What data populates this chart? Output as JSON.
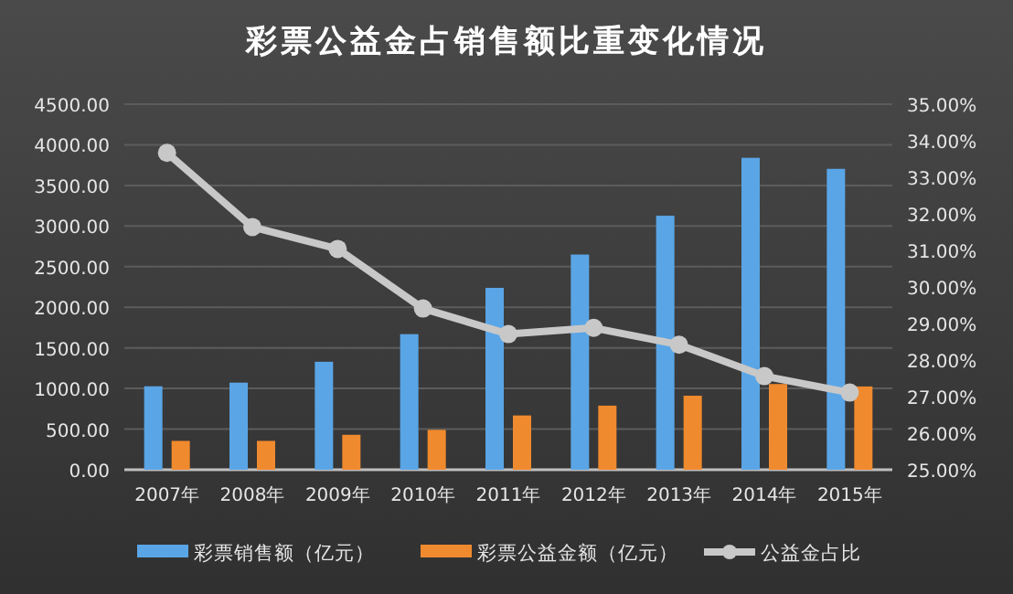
{
  "chart_data": {
    "type": "bar",
    "title": "彩票公益金占销售额比重变化情况",
    "categories": [
      "2007年",
      "2008年",
      "2009年",
      "2010年",
      "2011年",
      "2012年",
      "2013年",
      "2014年",
      "2015年"
    ],
    "series": [
      {
        "name": "彩票销售额（亿元）",
        "color": "#5aa5e6",
        "values": [
          1027,
          1072,
          1329,
          1669,
          2239,
          2649,
          3127,
          3840,
          3704
        ]
      },
      {
        "name": "彩票公益金额（亿元）",
        "color": "#f08a2e",
        "values": [
          355,
          355,
          430,
          491,
          668,
          789,
          911,
          1055,
          1025
        ]
      },
      {
        "name": "公益金占比",
        "type": "line",
        "axis": "y2",
        "color": "#c8c8c8",
        "marker": "circle",
        "values": [
          33.67,
          31.64,
          31.04,
          29.41,
          28.71,
          28.88,
          28.42,
          27.56,
          27.11
        ]
      }
    ],
    "ylim": [
      0,
      4500
    ],
    "yticks": [
      {
        "value": 0,
        "label": "0.00"
      },
      {
        "value": 500,
        "label": "500.00"
      },
      {
        "value": 1000,
        "label": "1000.00"
      },
      {
        "value": 1500,
        "label": "1500.00"
      },
      {
        "value": 2000,
        "label": "2000.00"
      },
      {
        "value": 2500,
        "label": "2500.00"
      },
      {
        "value": 3000,
        "label": "3000.00"
      },
      {
        "value": 3500,
        "label": "3500.00"
      },
      {
        "value": 4000,
        "label": "4000.00"
      },
      {
        "value": 4500,
        "label": "4500.00"
      }
    ],
    "y2lim": [
      25,
      35
    ],
    "y2ticks": [
      {
        "value": 25,
        "label": "25.00%"
      },
      {
        "value": 26,
        "label": "26.00%"
      },
      {
        "value": 27,
        "label": "27.00%"
      },
      {
        "value": 28,
        "label": "28.00%"
      },
      {
        "value": 29,
        "label": "29.00%"
      },
      {
        "value": 30,
        "label": "30.00%"
      },
      {
        "value": 31,
        "label": "31.00%"
      },
      {
        "value": 32,
        "label": "32.00%"
      },
      {
        "value": 33,
        "label": "33.00%"
      },
      {
        "value": 34,
        "label": "34.00%"
      },
      {
        "value": 35,
        "label": "35.00%"
      }
    ],
    "grid": "y",
    "legend": "bottom"
  }
}
